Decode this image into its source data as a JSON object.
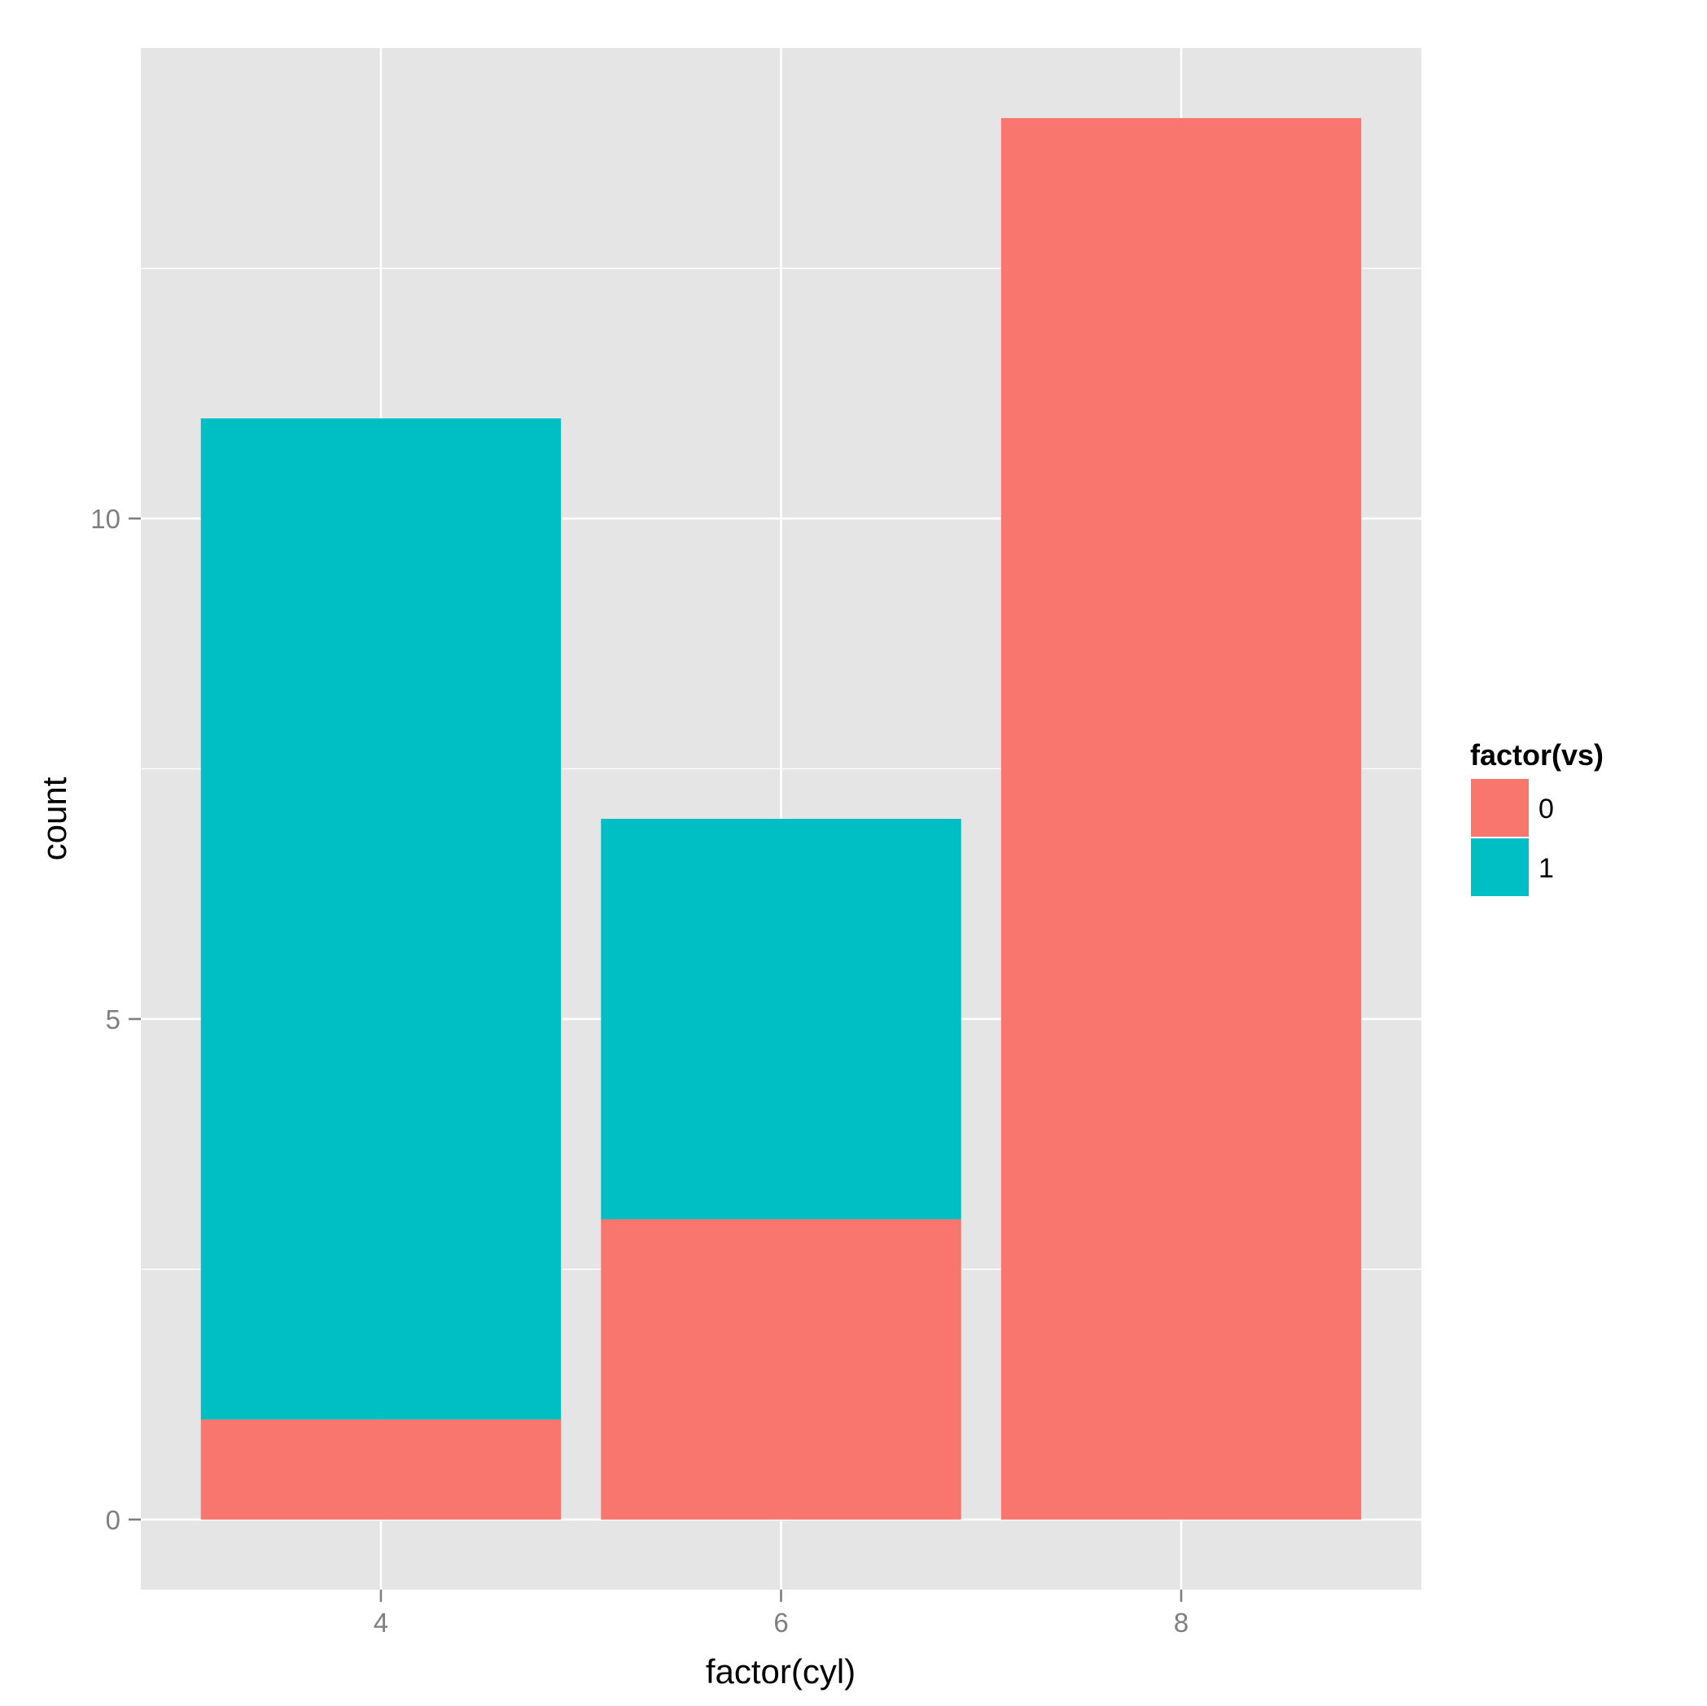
{
  "chart_data": {
    "type": "bar",
    "stacked": true,
    "xlabel": "factor(cyl)",
    "ylabel": "count",
    "categories": [
      "4",
      "6",
      "8"
    ],
    "series": [
      {
        "name": "0",
        "values": [
          1,
          3,
          14
        ],
        "color": "#F8766D"
      },
      {
        "name": "1",
        "values": [
          10,
          4,
          0
        ],
        "color": "#00BFC4"
      }
    ],
    "ylim": [
      -0.7,
      14.7
    ],
    "yticks": [
      "0",
      "5",
      "10"
    ],
    "legend": {
      "title": "factor(vs)",
      "placement": "right"
    },
    "grid": true,
    "panel_color": "#E5E5E5",
    "grid_color": "#FFFFFF"
  }
}
